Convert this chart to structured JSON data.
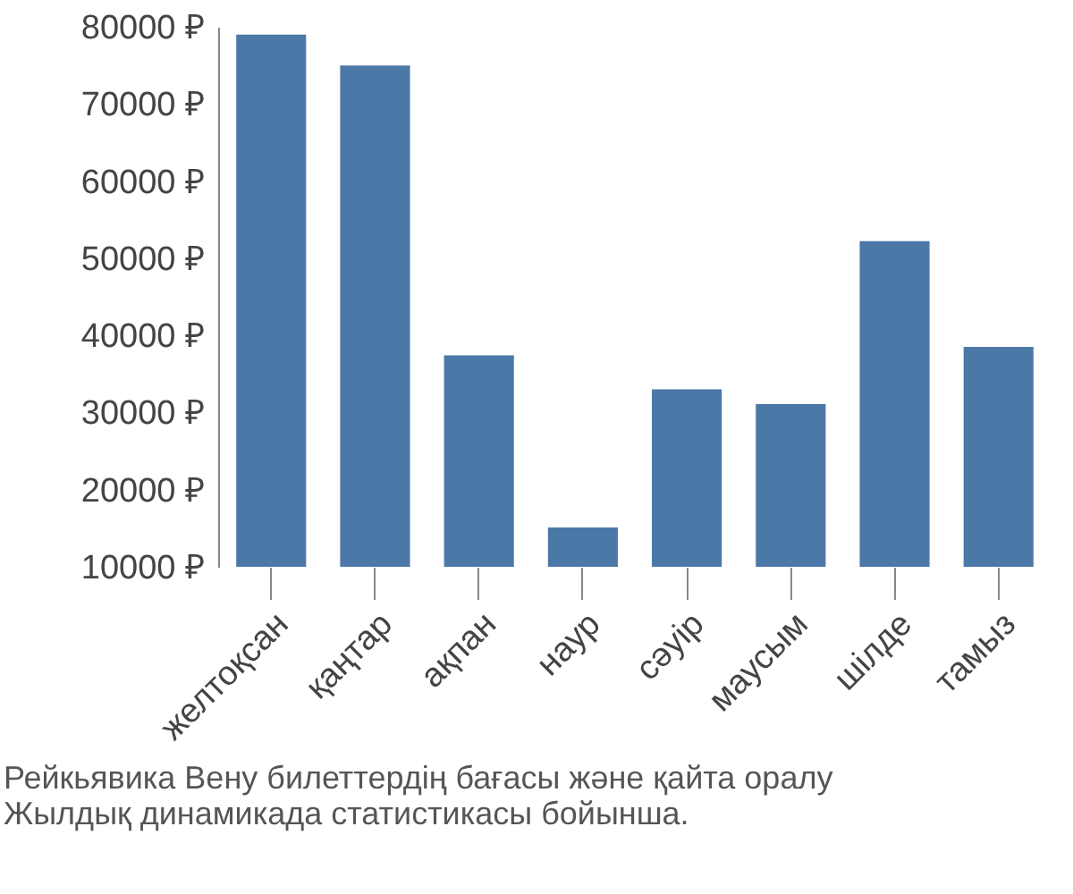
{
  "chart_data": {
    "type": "bar",
    "categories": [
      "желтоқсан",
      "қаңтар",
      "ақпан",
      "наур",
      "сәуір",
      "маусым",
      "шілде",
      "тамыз"
    ],
    "values": [
      79000,
      75000,
      37400,
      15100,
      33000,
      31100,
      52200,
      38500
    ],
    "color": "#4c78a8",
    "ylim": [
      10000,
      80000
    ],
    "yticks": [
      {
        "value": 10000,
        "label": "10000 ₽"
      },
      {
        "value": 20000,
        "label": "20000 ₽"
      },
      {
        "value": 30000,
        "label": "30000 ₽"
      },
      {
        "value": 40000,
        "label": "40000 ₽"
      },
      {
        "value": 50000,
        "label": "50000 ₽"
      },
      {
        "value": 60000,
        "label": "60000 ₽"
      },
      {
        "value": 70000,
        "label": "70000 ₽"
      },
      {
        "value": 80000,
        "label": "80000 ₽"
      }
    ],
    "annotations": [
      "Рейкьявика Вену билеттердің бағасы және қайта оралу",
      "Жылдық динамикада статистикасы бойынша."
    ]
  }
}
